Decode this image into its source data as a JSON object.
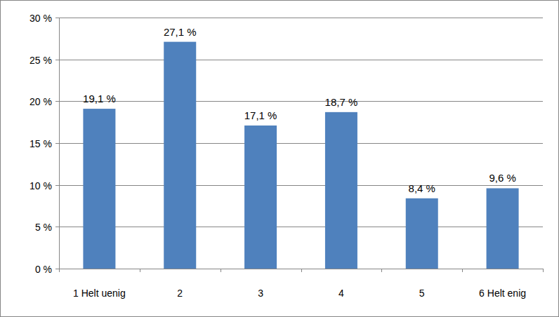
{
  "chart_data": {
    "type": "bar",
    "categories": [
      "1 Helt uenig",
      "2",
      "3",
      "4",
      "5",
      "6 Helt enig"
    ],
    "values": [
      19.1,
      27.1,
      17.1,
      18.7,
      8.4,
      9.6
    ],
    "value_labels": [
      "19,1 %",
      "27,1 %",
      "17,1 %",
      "18,7 %",
      "8,4 %",
      "9,6 %"
    ],
    "color": "#4f81bd",
    "ylim": [
      0,
      30
    ],
    "yticks": [
      {
        "value": 0,
        "label": "0 %"
      },
      {
        "value": 5,
        "label": "5 %"
      },
      {
        "value": 10,
        "label": "10 %"
      },
      {
        "value": 15,
        "label": "15 %"
      },
      {
        "value": 20,
        "label": "20 %"
      },
      {
        "value": 25,
        "label": "25 %"
      },
      {
        "value": 30,
        "label": "30 %"
      }
    ],
    "grid": true,
    "data_labels": true
  }
}
